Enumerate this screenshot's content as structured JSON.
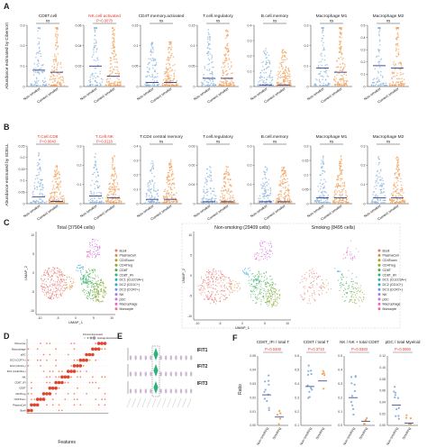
{
  "panels": {
    "A": {
      "letter": "A",
      "ylabel": "Abundance estimated by Cibersort",
      "groups": [
        "Non-smoker",
        "Current smoker"
      ],
      "colors": {
        "nonsmoker": "#8ab4dc",
        "smoker": "#f2a35e",
        "red": "#e63a2e",
        "median": "#2f3e8c"
      },
      "subplots": [
        {
          "title": "CD8T.cell",
          "title_red": false,
          "annot": "ns",
          "annot_red": false,
          "ylim": [
            0,
            0.3
          ],
          "ticks": [
            0.0,
            0.1,
            0.2,
            0.3
          ],
          "medians": [
            0.08,
            0.07
          ]
        },
        {
          "title": "NK.cell.activated",
          "title_red": true,
          "annot": "P=0.0070",
          "annot_red": true,
          "ylim": [
            0,
            0.06
          ],
          "ticks": [
            0.0,
            0.02,
            0.04,
            0.06
          ],
          "medians": [
            0.02,
            0.01
          ]
        },
        {
          "title": "CD4T.memory.activated",
          "title_red": false,
          "annot": "ns",
          "annot_red": false,
          "ylim": [
            0,
            0.15
          ],
          "ticks": [
            0.0,
            0.05,
            0.1,
            0.15
          ],
          "medians": [
            0.01,
            0.01
          ]
        },
        {
          "title": "T.cell.regulatory",
          "title_red": false,
          "annot": "ns",
          "annot_red": false,
          "ylim": [
            0,
            0.15
          ],
          "ticks": [
            0.0,
            0.05,
            0.1,
            0.15
          ],
          "medians": [
            0.02,
            0.02
          ]
        },
        {
          "title": "B.cell.memory",
          "title_red": false,
          "annot": "ns",
          "annot_red": false,
          "ylim": [
            0,
            0.4
          ],
          "ticks": [
            0.0,
            0.1,
            0.2,
            0.3,
            0.4
          ],
          "medians": [
            0.01,
            0.01
          ]
        },
        {
          "title": "Macrophage M1",
          "title_red": false,
          "annot": "ns",
          "annot_red": false,
          "ylim": [
            0,
            0.3
          ],
          "ticks": [
            0.0,
            0.1,
            0.2,
            0.3
          ],
          "medians": [
            0.09,
            0.07
          ]
        },
        {
          "title": "Macrophage M2",
          "title_red": false,
          "annot": "ns",
          "annot_red": false,
          "ylim": [
            0,
            0.5
          ],
          "ticks": [
            0.0,
            0.1,
            0.2,
            0.3,
            0.4,
            0.5
          ],
          "medians": [
            0.17,
            0.15
          ]
        }
      ]
    },
    "B": {
      "letter": "B",
      "ylabel": "Abundance estimated by SCELL",
      "groups": [
        "Non-smoker",
        "Current smoker"
      ],
      "subplots": [
        {
          "title": "T.Cell.CD8",
          "title_red": true,
          "annot": "P=0.0040",
          "annot_red": true,
          "ylim": [
            0,
            0.25
          ],
          "ticks": [
            0.0,
            0.05,
            0.1,
            0.15,
            0.2,
            0.25
          ],
          "medians": [
            0.03,
            0.01
          ]
        },
        {
          "title": "T.Cell.NK",
          "title_red": true,
          "annot": "P=0.0118",
          "annot_red": true,
          "ylim": [
            0,
            0.3
          ],
          "ticks": [
            0.0,
            0.1,
            0.2,
            0.3
          ],
          "medians": [
            0.04,
            0.03
          ]
        },
        {
          "title": "T.CD4 central memory",
          "title_red": false,
          "annot": "ns",
          "annot_red": false,
          "ylim": [
            0,
            0.4
          ],
          "ticks": [
            0.0,
            0.1,
            0.2,
            0.3,
            0.4
          ],
          "medians": [
            0.03,
            0.03
          ]
        },
        {
          "title": "T.cell.regulatory",
          "title_red": false,
          "annot": "ns",
          "annot_red": false,
          "ylim": [
            0,
            0.03
          ],
          "ticks": [
            0.0,
            0.01,
            0.02,
            0.03
          ],
          "medians": [
            0.001,
            0.001
          ]
        },
        {
          "title": "B.cell.memory",
          "title_red": false,
          "annot": "ns",
          "annot_red": false,
          "ylim": [
            0,
            0.3
          ],
          "ticks": [
            0.0,
            0.1,
            0.2,
            0.3
          ],
          "medians": [
            0.01,
            0.01
          ]
        },
        {
          "title": "Macrophage M1",
          "title_red": false,
          "annot": "ns",
          "annot_red": false,
          "ylim": [
            0,
            0.2
          ],
          "ticks": [
            0.0,
            0.05,
            0.1,
            0.15,
            0.2
          ],
          "medians": [
            0.02,
            0.02
          ]
        },
        {
          "title": "Macrophage M2",
          "title_red": false,
          "annot": "ns",
          "annot_red": false,
          "ylim": [
            0,
            0.3
          ],
          "ticks": [
            0.0,
            0.1,
            0.2,
            0.3
          ],
          "medians": [
            0.03,
            0.03
          ]
        }
      ]
    },
    "C": {
      "letter": "C",
      "umaps": [
        {
          "title": "Total (37904 cells)",
          "xlabel": "UMAP_1",
          "ylabel": "UMAP_2"
        },
        {
          "title": "Non-smoking (29409 cells)",
          "xlabel": "UMAP_1",
          "ylabel": "UMAP_2"
        },
        {
          "title": "Smoking (8495 cells)",
          "xlabel": "",
          "ylabel": ""
        }
      ],
      "xticks": [
        "-10",
        "-5",
        "0",
        "5",
        "10"
      ],
      "yticks": [
        "-10",
        "-5",
        "0",
        "5",
        "10"
      ],
      "legend": [
        {
          "label": "Bcell",
          "color": "#e8786f"
        },
        {
          "label": "PlasmaCell",
          "color": "#d58f3a"
        },
        {
          "label": "CD4Tconv",
          "color": "#b39a29"
        },
        {
          "label": "CD4Treg",
          "color": "#8ba82a"
        },
        {
          "label": "CD8T",
          "color": "#3fae45"
        },
        {
          "label": "CD8T_IFI",
          "color": "#2bb37e"
        },
        {
          "label": "DC1 (CLEC9A+)",
          "color": "#27b2ad"
        },
        {
          "label": "DC2 (CD1C+)",
          "color": "#2aa8d8"
        },
        {
          "label": "DC3 (CCR7+)",
          "color": "#6c95ea"
        },
        {
          "label": "NK",
          "color": "#a27be8"
        },
        {
          "label": "pDC",
          "color": "#d36ce0"
        },
        {
          "label": "Macrophage",
          "color": "#ee64bd"
        },
        {
          "label": "Monocyte",
          "color": "#f56b90"
        }
      ]
    },
    "D": {
      "letter": "D",
      "xlabel": "Features",
      "rows": [
        "Monocyte",
        "Macrophage",
        "pDC",
        "DC3 (CCR7+)",
        "DC2 (CD1C+)",
        "DC1 (CLEC9A+)",
        "NK",
        "CD8T_IFI",
        "CD8T",
        "CD4Treg",
        "CD4Tconv",
        "PlasmaCell",
        "Bcell"
      ],
      "legend_title_1": "Percent Expressed",
      "legend_title_2": "Average Expression"
    },
    "E": {
      "letter": "E",
      "genes": [
        "IFIT1",
        "IFIT2",
        "IFIT3"
      ],
      "highlight_color": "#2bb37e"
    },
    "F": {
      "letter": "F",
      "ylabel": "Ratio",
      "groups": [
        "Non-smoking",
        "Smoking"
      ],
      "subplots": [
        {
          "title": "CD8T_IFI / total T",
          "annot": "P=0.0400",
          "ticks": [
            "0.00",
            "0.01",
            "0.02",
            "0.03",
            "0.04",
            "0.05"
          ],
          "ylim": [
            0,
            0.05
          ],
          "medians": [
            0.022,
            0.006
          ]
        },
        {
          "title": "CD8T / total T",
          "annot": "P=0.3710",
          "ticks": [
            "0.1",
            "0.2",
            "0.3",
            "0.4",
            "0.5",
            "0.6"
          ],
          "ylim": [
            0.1,
            0.6
          ],
          "medians": [
            0.38,
            0.42
          ]
        },
        {
          "title": "NK / NK + total CD8T",
          "annot": "P=0.0383",
          "ticks": [
            "0.0",
            "0.1",
            "0.2",
            "0.3",
            "0.4",
            "0.5"
          ],
          "ylim": [
            0,
            0.5
          ],
          "medians": [
            0.2,
            0.03
          ]
        },
        {
          "title": "pDC / total Myeloid",
          "annot": "P=0.0060",
          "ticks": [
            "0.00",
            "0.02",
            "0.04",
            "0.06",
            "0.08",
            "0.10",
            "0.12"
          ],
          "ylim": [
            0,
            0.12
          ],
          "medians": [
            0.035,
            0.004
          ]
        }
      ]
    }
  },
  "chart_data": [
    {
      "type": "scatter",
      "title": "CD8T.cell",
      "groups": [
        "Non-smoker",
        "Current smoker"
      ],
      "medians": [
        0.08,
        0.07
      ],
      "ylim": [
        0,
        0.3
      ],
      "annotation": "ns"
    },
    {
      "type": "scatter",
      "title": "NK.cell.activated",
      "groups": [
        "Non-smoker",
        "Current smoker"
      ],
      "medians": [
        0.02,
        0.01
      ],
      "ylim": [
        0,
        0.06
      ],
      "annotation": "P=0.0070"
    },
    {
      "type": "scatter",
      "title": "CD4T.memory.activated",
      "groups": [
        "Non-smoker",
        "Current smoker"
      ],
      "medians": [
        0.01,
        0.01
      ],
      "ylim": [
        0,
        0.15
      ],
      "annotation": "ns"
    },
    {
      "type": "scatter",
      "title": "T.cell.regulatory",
      "groups": [
        "Non-smoker",
        "Current smoker"
      ],
      "medians": [
        0.02,
        0.02
      ],
      "ylim": [
        0,
        0.15
      ],
      "annotation": "ns"
    },
    {
      "type": "scatter",
      "title": "B.cell.memory",
      "groups": [
        "Non-smoker",
        "Current smoker"
      ],
      "medians": [
        0.01,
        0.01
      ],
      "ylim": [
        0,
        0.4
      ],
      "annotation": "ns"
    },
    {
      "type": "scatter",
      "title": "Macrophage M1",
      "groups": [
        "Non-smoker",
        "Current smoker"
      ],
      "medians": [
        0.09,
        0.07
      ],
      "ylim": [
        0,
        0.3
      ],
      "annotation": "ns"
    },
    {
      "type": "scatter",
      "title": "Macrophage M2",
      "groups": [
        "Non-smoker",
        "Current smoker"
      ],
      "medians": [
        0.17,
        0.15
      ],
      "ylim": [
        0,
        0.5
      ],
      "annotation": "ns"
    },
    {
      "type": "scatter",
      "title": "T.Cell.CD8",
      "groups": [
        "Non-smoker",
        "Current smoker"
      ],
      "medians": [
        0.03,
        0.01
      ],
      "ylim": [
        0,
        0.25
      ],
      "annotation": "P=0.0040"
    },
    {
      "type": "scatter",
      "title": "T.Cell.NK",
      "groups": [
        "Non-smoker",
        "Current smoker"
      ],
      "medians": [
        0.04,
        0.03
      ],
      "ylim": [
        0,
        0.3
      ],
      "annotation": "P=0.0118"
    },
    {
      "type": "scatter",
      "title": "CD8T_IFI / total T",
      "groups": [
        "Non-smoking",
        "Smoking"
      ],
      "medians": [
        0.022,
        0.006
      ],
      "annotation": "P=0.0400"
    },
    {
      "type": "scatter",
      "title": "CD8T / total T",
      "groups": [
        "Non-smoking",
        "Smoking"
      ],
      "medians": [
        0.38,
        0.42
      ],
      "annotation": "P=0.3710"
    },
    {
      "type": "scatter",
      "title": "NK / NK + total CD8T",
      "groups": [
        "Non-smoking",
        "Smoking"
      ],
      "medians": [
        0.2,
        0.03
      ],
      "annotation": "P=0.0383"
    },
    {
      "type": "scatter",
      "title": "pDC / total Myeloid",
      "groups": [
        "Non-smoking",
        "Smoking"
      ],
      "medians": [
        0.035,
        0.004
      ],
      "annotation": "P=0.0060"
    }
  ]
}
